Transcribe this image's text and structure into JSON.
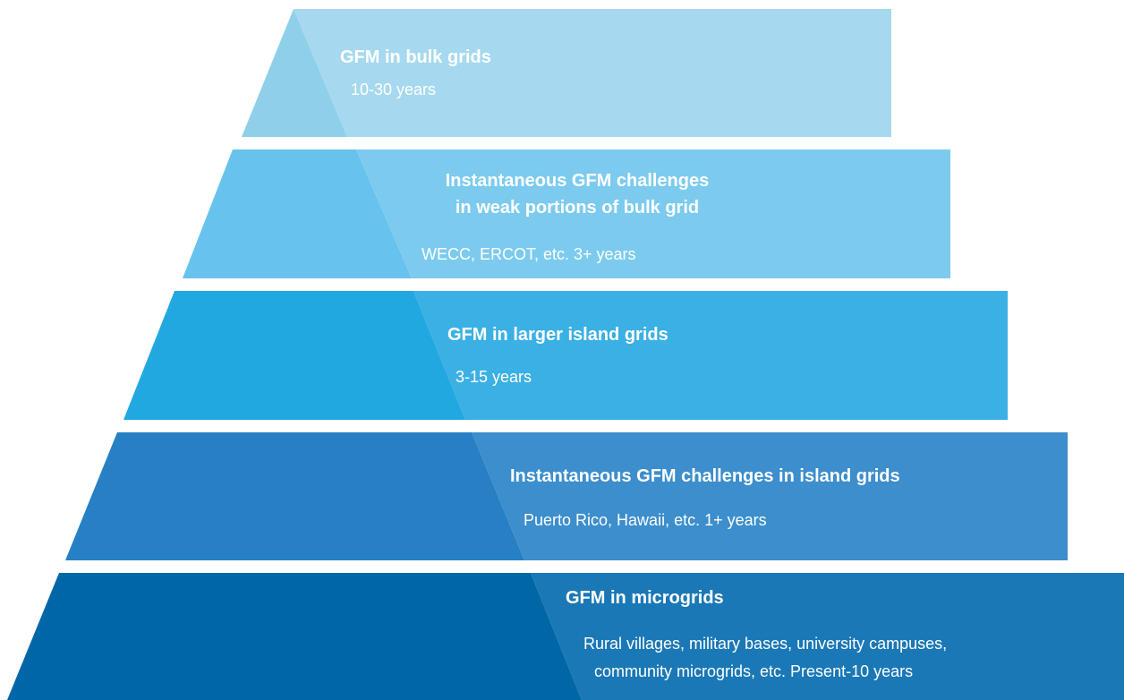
{
  "layers": [
    {
      "title": [
        "GFM in bulk grids"
      ],
      "detail": [
        "10-30 years"
      ]
    },
    {
      "title": [
        "Instantaneous GFM challenges",
        "in weak portions of bulk grid"
      ],
      "detail": [
        "WECC, ERCOT, etc. 3+ years"
      ]
    },
    {
      "title": [
        "GFM in larger island grids"
      ],
      "detail": [
        "3-15 years"
      ]
    },
    {
      "title": [
        "Instantaneous GFM challenges in island grids"
      ],
      "detail": [
        "Puerto Rico, Hawaii, etc. 1+ years"
      ]
    },
    {
      "title": [
        "GFM in microgrids"
      ],
      "detail": [
        "Rural villages, military bases, university campuses,",
        "community microgrids, etc. Present-10 years"
      ]
    }
  ]
}
